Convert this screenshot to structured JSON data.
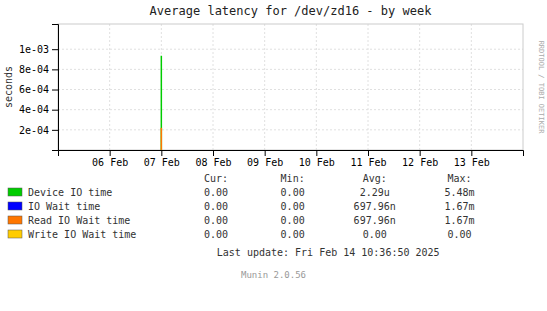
{
  "chart_data": {
    "type": "stem",
    "title": "Average latency for /dev/zd16 - by week",
    "y_label": "seconds",
    "xlim": [
      1707091200,
      1707868800
    ],
    "xticks": [
      {
        "value": 1707177600,
        "label": "06 Feb"
      },
      {
        "value": 1707264000,
        "label": "07 Feb"
      },
      {
        "value": 1707350400,
        "label": "08 Feb"
      },
      {
        "value": 1707436800,
        "label": "09 Feb"
      },
      {
        "value": 1707523200,
        "label": "10 Feb"
      },
      {
        "value": 1707609600,
        "label": "11 Feb"
      },
      {
        "value": 1707696000,
        "label": "12 Feb"
      },
      {
        "value": 1707782400,
        "label": "13 Feb"
      }
    ],
    "ylim": [
      0,
      0.00125
    ],
    "yticks": [
      {
        "value": 0.0002,
        "label": "2e-04"
      },
      {
        "value": 0.0004,
        "label": "4e-04"
      },
      {
        "value": 0.0006,
        "label": "6e-04"
      },
      {
        "value": 0.0008,
        "label": "8e-04"
      },
      {
        "value": 0.001,
        "label": "1e-03"
      }
    ],
    "grid": true,
    "legend": "bottom",
    "stat_labels": [
      "Cur:",
      "Min:",
      "Avg:",
      "Max:"
    ],
    "series": [
      {
        "name": "Device IO time",
        "color": "#00cc00",
        "x": [
          1707264000
        ],
        "values": [
          0.000935
        ],
        "stats": [
          {
            "value": 0,
            "label": "0.00"
          },
          {
            "value": 0,
            "label": "0.00"
          },
          {
            "value": 2.29e-06,
            "label": "2.29u"
          },
          {
            "value": 0.00548,
            "label": "5.48m"
          }
        ]
      },
      {
        "name": "IO Wait time",
        "color": "#0000ff",
        "x": [],
        "values": [],
        "stats": [
          {
            "value": 0,
            "label": "0.00"
          },
          {
            "value": 0,
            "label": "0.00"
          },
          {
            "value": 6.9796e-07,
            "label": "697.96n"
          },
          {
            "value": 0.00167,
            "label": "1.67m"
          }
        ]
      },
      {
        "name": "Read IO Wait time",
        "color": "#ff7700",
        "x": [
          1707264000
        ],
        "values": [
          0.00022
        ],
        "stats": [
          {
            "value": 0,
            "label": "0.00"
          },
          {
            "value": 0,
            "label": "0.00"
          },
          {
            "value": 6.9796e-07,
            "label": "697.96n"
          },
          {
            "value": 0.00167,
            "label": "1.67m"
          }
        ]
      },
      {
        "name": "Write IO Wait time",
        "color": "#ffcc00",
        "x": [],
        "values": [],
        "stats": [
          {
            "value": 0,
            "label": "0.00"
          },
          {
            "value": 0,
            "label": "0.00"
          },
          {
            "value": 0,
            "label": "0.00"
          },
          {
            "value": 0,
            "label": "0.00"
          }
        ]
      }
    ],
    "annotations": [
      "Last update: Fri Feb 14 10:36:50 2025",
      "Munin 2.0.56",
      "RRDTOOL / TOBI OETIKER"
    ]
  }
}
